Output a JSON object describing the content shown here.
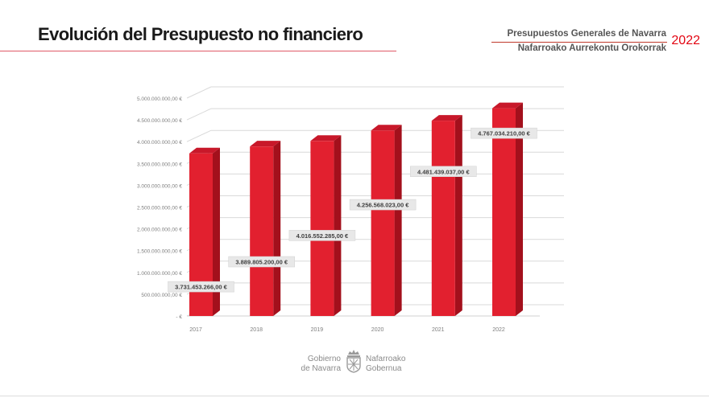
{
  "header": {
    "title": "Evolución del Presupuesto no financiero",
    "subtitle_es": "Presupuestos Generales de Navarra",
    "subtitle_eu": "Nafarroako Aurrekontu Orokorrak",
    "year": "2022"
  },
  "footer": {
    "left_line1": "Gobierno",
    "left_line2": "de Navarra",
    "right_line1": "Nafarroako",
    "right_line2": "Gobernua",
    "emblem": "navarra-coat-of-arms-icon"
  },
  "colors": {
    "bar_front": "#e2202f",
    "bar_side": "#a3101c",
    "bar_top": "#c8182a",
    "accent": "#e30613"
  },
  "chart_data": {
    "type": "bar",
    "categories": [
      "2017",
      "2018",
      "2019",
      "2020",
      "2021",
      "2022"
    ],
    "values": [
      3731453266.0,
      3889805200.0,
      4016552285.0,
      4256568023.0,
      4481439037.0,
      4767034210.0
    ],
    "data_labels": [
      "3.731.453.266,00 €",
      "3.889.805.200,00 €",
      "4.016.552.285,00 €",
      "4.256.568.023,00 €",
      "4.481.439.037,00 €",
      "4.767.034.210,00 €"
    ],
    "y_ticks": [
      0,
      500000000,
      1000000000,
      1500000000,
      2000000000,
      2500000000,
      3000000000,
      3500000000,
      4000000000,
      4500000000,
      5000000000
    ],
    "y_tick_labels": [
      "-  €",
      "500.000.000,00 €",
      "1.000.000.000,00 €",
      "1.500.000.000,00 €",
      "2.000.000.000,00 €",
      "2.500.000.000,00 €",
      "3.000.000.000,00 €",
      "3.500.000.000,00 €",
      "4.000.000.000,00 €",
      "4.500.000.000,00 €",
      "5.000.000.000,00 €"
    ],
    "ylim": [
      0,
      5000000000
    ],
    "grid": true,
    "style": "3d",
    "title": "",
    "xlabel": "",
    "ylabel": ""
  }
}
